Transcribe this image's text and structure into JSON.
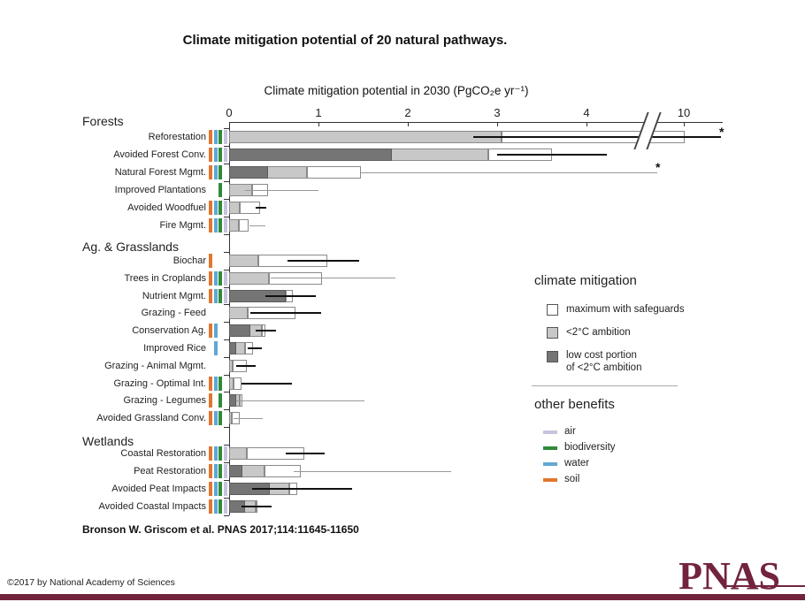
{
  "title": "Climate mitigation potential of 20 natural pathways.",
  "axis_title": "Climate mitigation potential in 2030 (PgCO₂e yr⁻¹)",
  "citation": "Bronson W. Griscom et al. PNAS 2017;114:11645-11650",
  "footer": {
    "copyright": "©2017 by National Academy of Sciences",
    "logo": "PNAS"
  },
  "colors": {
    "bar_light_gray": "#c8c8c8",
    "bar_dark_gray": "#757575",
    "bar_white": "#ffffff",
    "whisker_black": "#111111",
    "whisker_gray": "#999999",
    "air": "#c6c4df",
    "biodiversity": "#2e8b3a",
    "water": "#5fa8d3",
    "soil": "#e1762f",
    "pnas_maroon": "#72243d"
  },
  "legend": {
    "mitigation_title": "climate mitigation",
    "items": [
      {
        "key": "max",
        "label": "maximum with safeguards"
      },
      {
        "key": "ambition",
        "label": "<2°C ambition"
      },
      {
        "key": "lowcost",
        "label_line1": "low cost portion",
        "label_line2": "of <2°C ambition"
      }
    ],
    "benefits_title": "other benefits",
    "benefits": [
      {
        "key": "air",
        "label": "air"
      },
      {
        "key": "biodiversity",
        "label": "biodiversity"
      },
      {
        "key": "water",
        "label": "water"
      },
      {
        "key": "soil",
        "label": "soil"
      }
    ]
  },
  "chart_data": {
    "type": "bar",
    "orientation": "horizontal",
    "title": "Climate mitigation potential in 2030 (PgCO2e yr-1)",
    "xlabel": "PgCO2e yr-1",
    "x_ticks": [
      0,
      1,
      2,
      3,
      4,
      10
    ],
    "axis_break_after": 4.55,
    "series_legend": [
      "low cost portion of <2°C ambition",
      "<2°C ambition",
      "maximum with safeguards"
    ],
    "sections": [
      {
        "label": "Forests",
        "rows": [
          {
            "label": "Reforestation",
            "low_cost": 0,
            "ambition_2c": 3.05,
            "max_safeguards": 10.1,
            "whisker": [
              2.73,
              14.2
            ],
            "whisker_style": "black",
            "asterisk": true,
            "benefits": [
              "soil",
              "water",
              "biodiversity",
              "air"
            ]
          },
          {
            "label": "Avoided Forest Conv.",
            "low_cost": 1.82,
            "ambition_2c": 2.9,
            "max_safeguards": 3.61,
            "whisker": [
              3.0,
              4.23
            ],
            "whisker_style": "black",
            "asterisk": false,
            "benefits": [
              "soil",
              "water",
              "biodiversity",
              "air"
            ]
          },
          {
            "label": "Natural Forest Mgmt.",
            "low_cost": 0.44,
            "ambition_2c": 0.87,
            "max_safeguards": 1.48,
            "whisker": [
              1.48,
              7.0
            ],
            "whisker_style": "gray",
            "asterisk": true,
            "benefits": [
              "soil",
              "water",
              "biodiversity"
            ]
          },
          {
            "label": "Improved Plantations",
            "low_cost": 0,
            "ambition_2c": 0.26,
            "max_safeguards": 0.44,
            "whisker": [
              0.18,
              1.0
            ],
            "whisker_style": "gray",
            "asterisk": false,
            "benefits": [
              "biodiversity"
            ]
          },
          {
            "label": "Avoided Woodfuel",
            "low_cost": 0,
            "ambition_2c": 0.12,
            "max_safeguards": 0.35,
            "whisker": [
              0.3,
              0.42
            ],
            "whisker_style": "black",
            "asterisk": false,
            "benefits": [
              "soil",
              "water",
              "biodiversity",
              "air"
            ]
          },
          {
            "label": "Fire Mgmt.",
            "low_cost": 0,
            "ambition_2c": 0.11,
            "max_safeguards": 0.22,
            "whisker": [
              0.23,
              0.41
            ],
            "whisker_style": "gray",
            "asterisk": false,
            "benefits": [
              "soil",
              "water",
              "biodiversity",
              "air"
            ]
          }
        ]
      },
      {
        "label": "Ag. & Grasslands",
        "rows": [
          {
            "label": "Biochar",
            "low_cost": 0,
            "ambition_2c": 0.33,
            "max_safeguards": 1.1,
            "whisker": [
              0.65,
              1.46
            ],
            "whisker_style": "black",
            "asterisk": false,
            "benefits": [
              "soil"
            ]
          },
          {
            "label": "Trees in Croplands",
            "low_cost": 0,
            "ambition_2c": 0.45,
            "max_safeguards": 1.04,
            "whisker": [
              0.47,
              1.86
            ],
            "whisker_style": "gray",
            "asterisk": false,
            "benefits": [
              "soil",
              "water",
              "biodiversity",
              "air"
            ]
          },
          {
            "label": "Nutrient Mgmt.",
            "low_cost": 0.63,
            "ambition_2c": 0.63,
            "max_safeguards": 0.71,
            "whisker": [
              0.41,
              0.97
            ],
            "whisker_style": "black",
            "asterisk": false,
            "benefits": [
              "soil",
              "water",
              "biodiversity",
              "air"
            ]
          },
          {
            "label": "Grazing - Feed",
            "low_cost": 0,
            "ambition_2c": 0.21,
            "max_safeguards": 0.74,
            "whisker": [
              0.24,
              1.03
            ],
            "whisker_style": "black",
            "asterisk": false,
            "benefits": []
          },
          {
            "label": "Conservation Ag.",
            "low_cost": 0.24,
            "ambition_2c": 0.37,
            "max_safeguards": 0.41,
            "whisker": [
              0.3,
              0.52
            ],
            "whisker_style": "black",
            "asterisk": false,
            "benefits": [
              "soil",
              "water"
            ]
          },
          {
            "label": "Improved Rice",
            "low_cost": 0.08,
            "ambition_2c": 0.18,
            "max_safeguards": 0.27,
            "whisker": [
              0.21,
              0.37
            ],
            "whisker_style": "black",
            "asterisk": false,
            "benefits": [
              "water"
            ]
          },
          {
            "label": "Grazing - Animal Mgmt.",
            "low_cost": 0,
            "ambition_2c": 0.04,
            "max_safeguards": 0.2,
            "whisker": [
              0.08,
              0.3
            ],
            "whisker_style": "black",
            "asterisk": false,
            "benefits": []
          },
          {
            "label": "Grazing - Optimal Int.",
            "low_cost": 0,
            "ambition_2c": 0.05,
            "max_safeguards": 0.14,
            "whisker": [
              0.14,
              0.7
            ],
            "whisker_style": "black",
            "asterisk": false,
            "benefits": [
              "soil",
              "water",
              "biodiversity"
            ]
          },
          {
            "label": "Grazing - Legumes",
            "low_cost": 0.08,
            "ambition_2c": 0.12,
            "max_safeguards": 0.15,
            "whisker": [
              0.08,
              1.51
            ],
            "whisker_style": "gray",
            "asterisk": false,
            "benefits": [
              "soil",
              "biodiversity"
            ]
          },
          {
            "label": "Avoided Grassland Conv.",
            "low_cost": 0,
            "ambition_2c": 0.03,
            "max_safeguards": 0.12,
            "whisker": [
              0.05,
              0.38
            ],
            "whisker_style": "gray",
            "asterisk": false,
            "benefits": [
              "soil",
              "water",
              "biodiversity"
            ]
          }
        ]
      },
      {
        "label": "Wetlands",
        "rows": [
          {
            "label": "Coastal Restoration",
            "low_cost": 0,
            "ambition_2c": 0.2,
            "max_safeguards": 0.84,
            "whisker": [
              0.63,
              1.07
            ],
            "whisker_style": "black",
            "asterisk": false,
            "benefits": [
              "soil",
              "water",
              "biodiversity",
              "air"
            ]
          },
          {
            "label": "Peat Restoration",
            "low_cost": 0.15,
            "ambition_2c": 0.4,
            "max_safeguards": 0.8,
            "whisker": [
              0.72,
              2.49
            ],
            "whisker_style": "gray",
            "asterisk": false,
            "benefits": [
              "soil",
              "water",
              "biodiversity",
              "air"
            ]
          },
          {
            "label": "Avoided Peat Impacts",
            "low_cost": 0.46,
            "ambition_2c": 0.67,
            "max_safeguards": 0.76,
            "whisker": [
              0.26,
              1.38
            ],
            "whisker_style": "black",
            "asterisk": false,
            "benefits": [
              "soil",
              "water",
              "biodiversity",
              "air"
            ]
          },
          {
            "label": "Avoided Coastal Impacts",
            "low_cost": 0.18,
            "ambition_2c": 0.3,
            "max_safeguards": 0.32,
            "whisker": [
              0.14,
              0.48
            ],
            "whisker_style": "black",
            "asterisk": false,
            "benefits": [
              "soil",
              "water",
              "biodiversity",
              "air"
            ]
          }
        ]
      }
    ]
  }
}
